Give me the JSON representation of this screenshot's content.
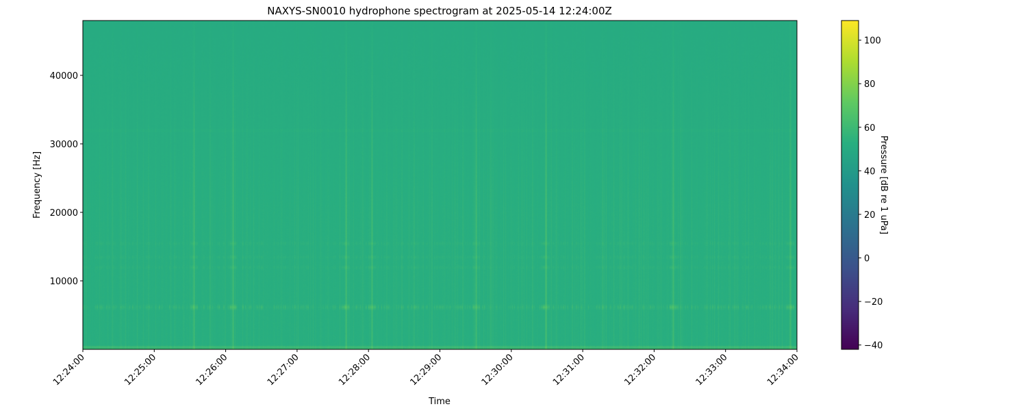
{
  "chart_data": {
    "type": "heatmap",
    "title": "NAXYS-SN0010 hydrophone spectrogram at 2025-05-14 12:24:00Z",
    "xlabel": "Time",
    "ylabel": "Frequency [Hz]",
    "xlim": [
      "12:24:00",
      "12:34:00"
    ],
    "ylim": [
      0,
      48000
    ],
    "xticks": [
      "12:24:00",
      "12:25:00",
      "12:26:00",
      "12:27:00",
      "12:28:00",
      "12:29:00",
      "12:30:00",
      "12:31:00",
      "12:32:00",
      "12:33:00",
      "12:34:00"
    ],
    "yticks": [
      10000,
      20000,
      30000,
      40000
    ],
    "colormap": "viridis",
    "colorbar": {
      "label": "Pressure [dB re 1 uPa]",
      "range": [
        -42,
        109
      ],
      "ticks": [
        -40,
        -20,
        0,
        20,
        40,
        60,
        80,
        100
      ]
    },
    "background_level_db": 52,
    "features": {
      "tonal_band_hz": 6200,
      "harmonic_band_hz": [
        12000,
        13500,
        15500
      ],
      "faint_line_hz": 32000,
      "low_frequency_band_hz": [
        0,
        600
      ],
      "broadband_transients": [
        "12:25:33",
        "12:26:06",
        "12:27:41",
        "12:28:03",
        "12:29:30",
        "12:30:29",
        "12:32:16",
        "12:33:54"
      ]
    }
  }
}
